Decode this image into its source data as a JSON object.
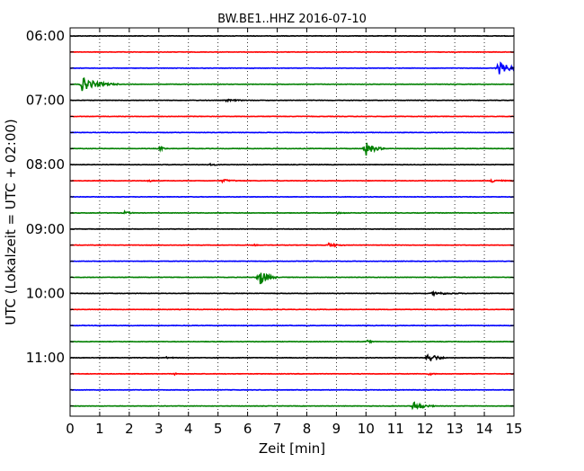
{
  "chart_data": {
    "type": "line",
    "title": "BW.BE1..HHZ 2016-07-10",
    "xlabel": "Zeit  [min]",
    "ylabel": "UTC (Lokalzeit = UTC + 02:00)",
    "xlim": [
      0,
      15
    ],
    "x_ticks": [
      "0",
      "1",
      "2",
      "3",
      "4",
      "5",
      "6",
      "7",
      "8",
      "9",
      "10",
      "11",
      "12",
      "13",
      "14",
      "15"
    ],
    "grid": "vertical dotted",
    "legend": "none",
    "trace_interval_min": 15,
    "trace_colors": [
      "#000000",
      "#ff0000",
      "#0000ff",
      "#008000"
    ],
    "y_hour_labels": [
      "06:00",
      "07:00",
      "08:00",
      "09:00",
      "10:00",
      "11:00"
    ],
    "hour_label_trace_index": [
      0,
      4,
      8,
      12,
      16,
      20
    ],
    "series": [
      {
        "start": "06:00",
        "events": []
      },
      {
        "start": "06:15",
        "events": []
      },
      {
        "start": "06:30",
        "events": [
          {
            "t": 14.4,
            "amp": 0.75,
            "dur": 1.0
          }
        ]
      },
      {
        "start": "06:45",
        "events": [
          {
            "t": 0.35,
            "amp": 0.7,
            "dur": 1.3
          }
        ]
      },
      {
        "start": "07:00",
        "events": [
          {
            "t": 5.2,
            "amp": 0.1,
            "dur": 1.0
          }
        ]
      },
      {
        "start": "07:15",
        "events": []
      },
      {
        "start": "07:30",
        "events": []
      },
      {
        "start": "07:45",
        "events": [
          {
            "t": 3.0,
            "amp": 0.3,
            "dur": 0.3
          },
          {
            "t": 9.95,
            "amp": 0.8,
            "dur": 0.7
          }
        ]
      },
      {
        "start": "08:00",
        "events": [
          {
            "t": 4.7,
            "amp": 0.12,
            "dur": 0.4
          }
        ]
      },
      {
        "start": "08:15",
        "events": [
          {
            "t": 2.6,
            "amp": 0.18,
            "dur": 0.3
          },
          {
            "t": 5.1,
            "amp": 0.15,
            "dur": 0.8
          },
          {
            "t": 14.2,
            "amp": 0.2,
            "dur": 0.8
          }
        ]
      },
      {
        "start": "08:30",
        "events": []
      },
      {
        "start": "08:45",
        "events": [
          {
            "t": 1.8,
            "amp": 0.2,
            "dur": 0.4
          },
          {
            "t": 9.0,
            "amp": 0.1,
            "dur": 0.5
          }
        ]
      },
      {
        "start": "09:00",
        "events": []
      },
      {
        "start": "09:15",
        "events": [
          {
            "t": 6.2,
            "amp": 0.12,
            "dur": 0.2
          },
          {
            "t": 8.7,
            "amp": 0.25,
            "dur": 0.6
          }
        ]
      },
      {
        "start": "09:30",
        "events": []
      },
      {
        "start": "09:45",
        "events": [
          {
            "t": 6.35,
            "amp": 1.0,
            "dur": 0.7
          }
        ]
      },
      {
        "start": "10:00",
        "events": [
          {
            "t": 12.2,
            "amp": 0.18,
            "dur": 1.2
          }
        ]
      },
      {
        "start": "10:15",
        "events": []
      },
      {
        "start": "10:30",
        "events": []
      },
      {
        "start": "10:45",
        "events": [
          {
            "t": 10.0,
            "amp": 0.15,
            "dur": 0.4
          }
        ]
      },
      {
        "start": "11:00",
        "events": [
          {
            "t": 3.2,
            "amp": 0.08,
            "dur": 0.6
          },
          {
            "t": 12.05,
            "amp": 0.6,
            "dur": 0.7
          }
        ]
      },
      {
        "start": "11:15",
        "events": [
          {
            "t": 3.5,
            "amp": 0.18,
            "dur": 0.2
          },
          {
            "t": 12.1,
            "amp": 0.2,
            "dur": 0.3
          }
        ]
      },
      {
        "start": "11:30",
        "events": []
      },
      {
        "start": "11:45",
        "events": [
          {
            "t": 11.55,
            "amp": 0.5,
            "dur": 0.8
          }
        ]
      }
    ]
  }
}
